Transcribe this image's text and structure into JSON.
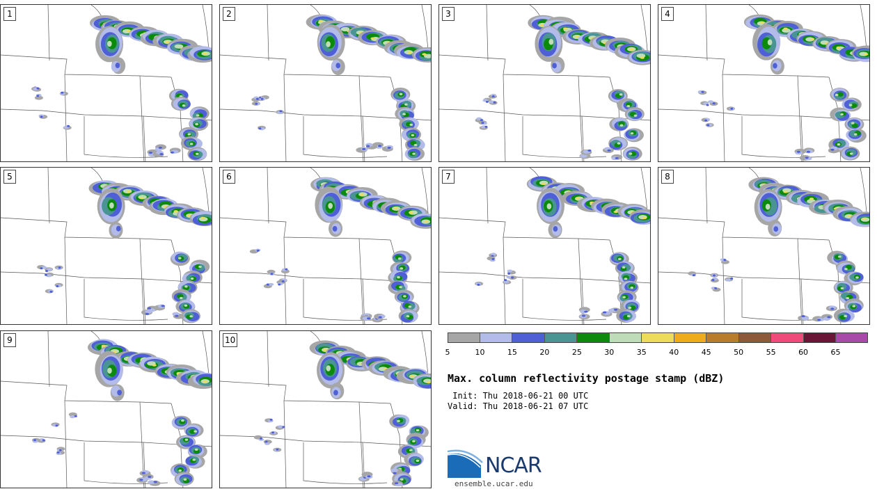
{
  "figure": {
    "title": "Max. column reflectivity postage stamp (dBZ)",
    "init_line": " Init: Thu 2018-06-21 00 UTC",
    "valid_line": "Valid: Thu 2018-06-21 07 UTC"
  },
  "members": [
    {
      "label": "1"
    },
    {
      "label": "2"
    },
    {
      "label": "3"
    },
    {
      "label": "4"
    },
    {
      "label": "5"
    },
    {
      "label": "6"
    },
    {
      "label": "7"
    },
    {
      "label": "8"
    },
    {
      "label": "9"
    },
    {
      "label": "10"
    }
  ],
  "colorbar": {
    "ticks": [
      "5",
      "10",
      "15",
      "20",
      "25",
      "30",
      "35",
      "40",
      "45",
      "50",
      "55",
      "60",
      "65"
    ],
    "colors": [
      "#a6a6a6",
      "#b3bce8",
      "#4f5fd6",
      "#4a9494",
      "#0b8a0b",
      "#bfdcb8",
      "#ecdc5a",
      "#eeac1c",
      "#b87c2a",
      "#8c5a3a",
      "#ee4a7a",
      "#6a1436",
      "#a84aa8"
    ]
  },
  "logo": {
    "name": "NCAR",
    "url": "ensemble.ucar.edu"
  }
}
